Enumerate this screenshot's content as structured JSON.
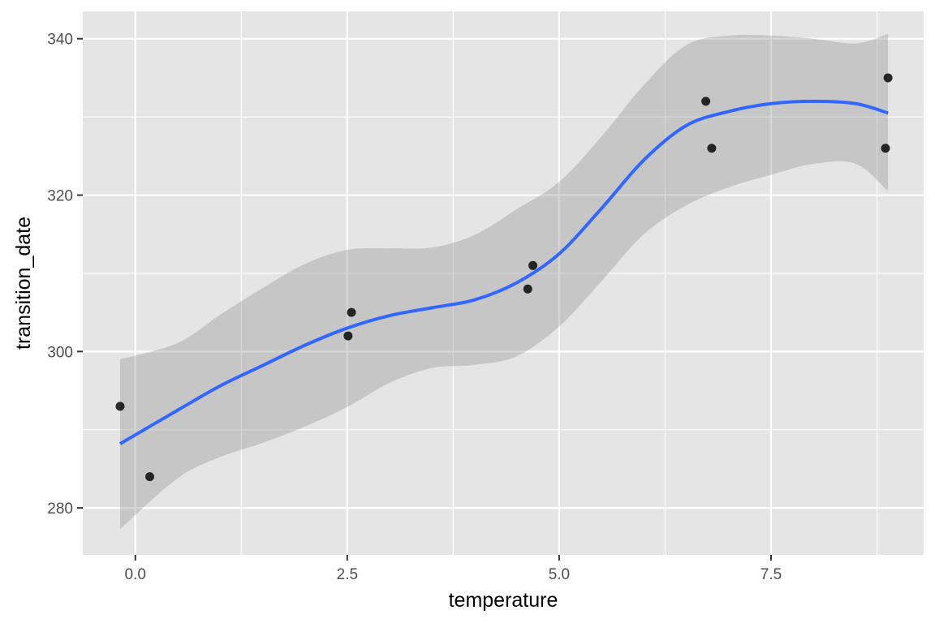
{
  "chart_data": {
    "type": "scatter",
    "xlabel": "temperature",
    "ylabel": "transition_date",
    "xlim": [
      -0.62,
      9.3
    ],
    "ylim": [
      274,
      343.5
    ],
    "x_ticks": [
      0.0,
      2.5,
      5.0,
      7.5
    ],
    "x_tick_labels": [
      "0.0",
      "2.5",
      "5.0",
      "7.5"
    ],
    "y_ticks": [
      280,
      300,
      320,
      340
    ],
    "y_tick_labels": [
      "280",
      "300",
      "320",
      "340"
    ],
    "grid": true,
    "legend": "none",
    "points": [
      {
        "x": -0.18,
        "y": 293
      },
      {
        "x": 0.17,
        "y": 284
      },
      {
        "x": 2.51,
        "y": 302
      },
      {
        "x": 2.55,
        "y": 305
      },
      {
        "x": 4.63,
        "y": 308
      },
      {
        "x": 4.69,
        "y": 311
      },
      {
        "x": 6.73,
        "y": 332
      },
      {
        "x": 6.8,
        "y": 326
      },
      {
        "x": 8.85,
        "y": 326
      },
      {
        "x": 8.88,
        "y": 335
      }
    ],
    "smooth": {
      "x": [
        -0.18,
        0.5,
        1.0,
        1.5,
        2.0,
        2.5,
        3.0,
        3.5,
        4.0,
        4.5,
        5.0,
        5.5,
        6.0,
        6.5,
        7.0,
        7.5,
        8.0,
        8.5,
        8.88
      ],
      "y": [
        288.2,
        292.5,
        295.6,
        298.2,
        300.8,
        303.0,
        304.6,
        305.6,
        306.6,
        308.8,
        312.5,
        318.3,
        324.5,
        328.9,
        330.7,
        331.7,
        332.0,
        331.7,
        330.5
      ],
      "ymin": [
        277.3,
        283.8,
        286.5,
        288.3,
        290.4,
        292.9,
        296.0,
        297.9,
        298.3,
        299.4,
        303.2,
        309.0,
        315.0,
        318.7,
        321.0,
        322.6,
        324.0,
        324.0,
        320.5
      ],
      "ymax": [
        299.0,
        301.1,
        304.7,
        308.1,
        311.2,
        313.0,
        313.2,
        313.3,
        314.9,
        318.2,
        321.7,
        327.5,
        334.1,
        339.2,
        340.4,
        340.4,
        340.0,
        339.4,
        340.6
      ]
    },
    "colors": {
      "panel": "#e5e5e5",
      "grid": "#ffffff",
      "point": "#000000",
      "line": "#3366ff",
      "band": "#999999"
    }
  }
}
